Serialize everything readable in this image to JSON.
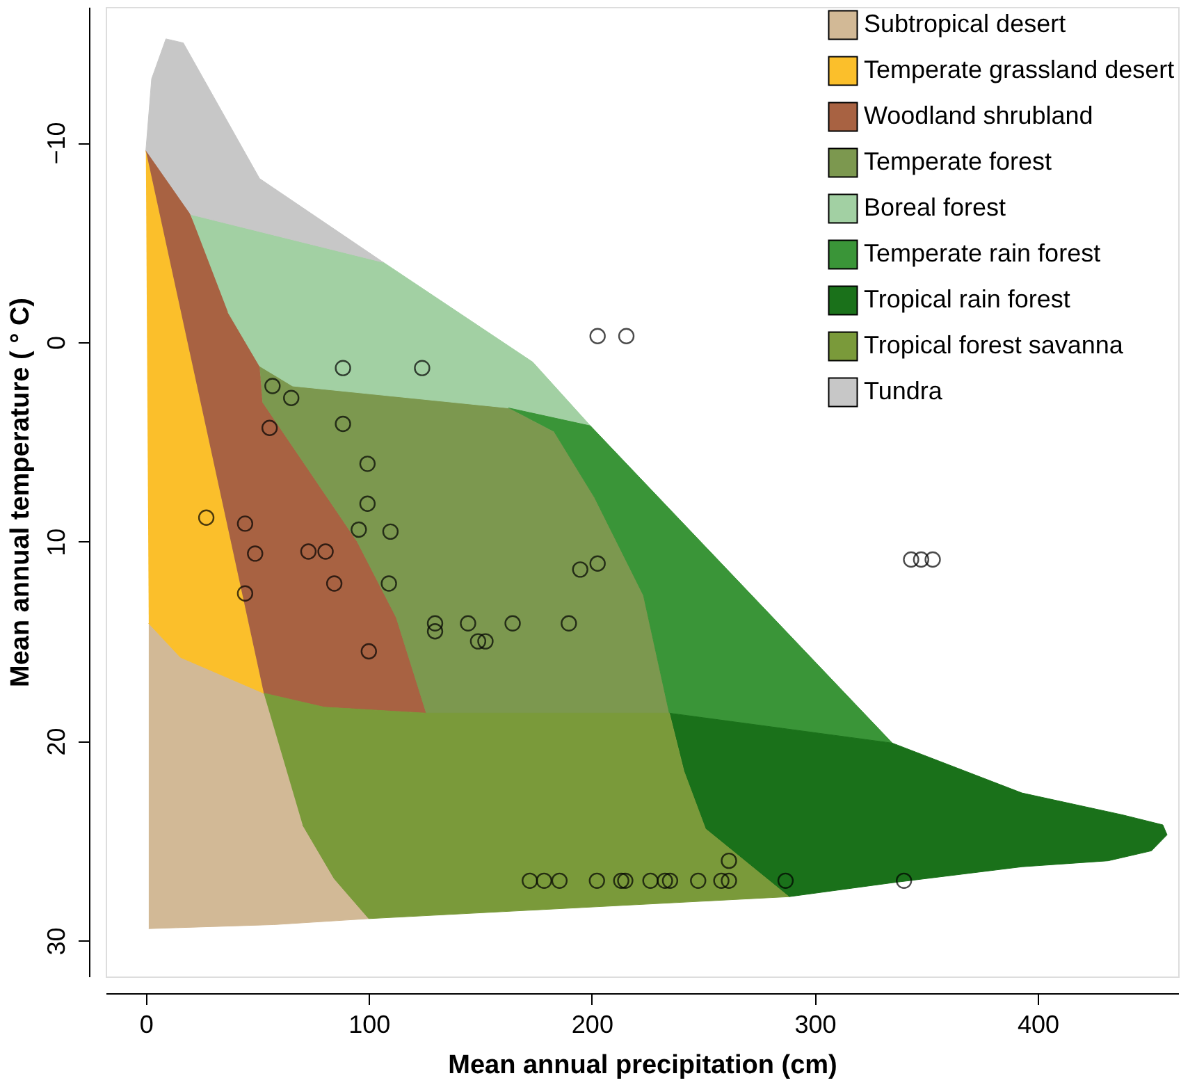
{
  "chart_data": {
    "type": "area",
    "xlabel": "Mean annual precipitation (cm)",
    "ylabel": "Mean annual temperature ( ° C)",
    "xlim": [
      -18,
      463
    ],
    "ylim": [
      31.8,
      -16.8
    ],
    "xticks": [
      0,
      100,
      200,
      300,
      400
    ],
    "yticks": [
      {
        "value": -10,
        "label": "−10"
      },
      0,
      10,
      20,
      30
    ],
    "grid": false,
    "legend": "top right",
    "series": [
      {
        "name": "Subtropical desert",
        "color": "#d2b996",
        "x": [
          1.3,
          15.5,
          52.9,
          70.3,
          84.5,
          100,
          57.4,
          1.3
        ],
        "values": [
          14.1,
          15.8,
          17.6,
          24.2,
          26.9,
          28.9,
          29.2,
          29.4
        ]
      },
      {
        "name": "Temperate grassland desert",
        "color": "#fbbf2b",
        "x": [
          0,
          52.9,
          15.5,
          1.3
        ],
        "values": [
          -9.6,
          17.6,
          15.8,
          14.1
        ]
      },
      {
        "name": "Woodland shrubland",
        "color": "#a86242",
        "x": [
          0,
          18.7,
          41.9,
          51,
          52.3,
          94.8,
          112.3,
          125.8,
          80,
          52.9
        ],
        "values": [
          -9.6,
          -6.7,
          -0.6,
          1.2,
          3.0,
          10.0,
          13.8,
          18.6,
          18.3,
          17.6
        ]
      },
      {
        "name": "Temperate forest",
        "color": "#7c984f",
        "x": [
          51,
          65.8,
          162.6,
          183.2,
          201.3,
          223.2,
          234.8,
          125.8,
          112.3,
          94.8,
          52.3
        ],
        "values": [
          1.2,
          2.2,
          3.3,
          4.5,
          7.8,
          12.7,
          18.6,
          18.6,
          13.8,
          10.0,
          3.0
        ]
      },
      {
        "name": "Boreal forest",
        "color": "#a2d0a3",
        "x": [
          20,
          106.5,
          173.5,
          199.4,
          162.6,
          65.8,
          51,
          36.8
        ],
        "values": [
          -6.4,
          -4.0,
          1.0,
          4.2,
          3.3,
          2.2,
          1.2,
          -1.5
        ]
      },
      {
        "name": "Temperate rain forest",
        "color": "#3a9538",
        "x": [
          162.6,
          199.4,
          334.8,
          234.8,
          223.2,
          201.3,
          183.2
        ],
        "values": [
          3.3,
          4.2,
          20.1,
          18.6,
          12.7,
          7.8,
          4.5
        ]
      },
      {
        "name": "Tropical rain forest",
        "color": "#1a711a",
        "x": [
          234.8,
          334.8,
          392.9,
          438.1,
          456.1,
          458,
          451,
          431.6,
          392.9,
          334.8,
          288.4,
          251,
          241.3
        ],
        "values": [
          18.6,
          20.1,
          22.6,
          23.7,
          24.2,
          24.7,
          25.5,
          26.0,
          26.3,
          27.1,
          27.8,
          24.4,
          21.5
        ]
      },
      {
        "name": "Tropical forest savanna",
        "color": "#7a9a3a",
        "x": [
          52.9,
          80,
          125.8,
          234.8,
          241.3,
          251,
          288.4,
          100,
          84.5,
          70.3
        ],
        "values": [
          17.6,
          18.3,
          18.6,
          18.6,
          21.5,
          24.4,
          27.8,
          28.9,
          26.9,
          24.2
        ]
      },
      {
        "name": "Tundra",
        "color": "#c7c7c7",
        "x": [
          0,
          2.6,
          9.0,
          16.8,
          51,
          106.5,
          20
        ],
        "values": [
          -9.6,
          -13.2,
          -15.2,
          -15.0,
          -8.2,
          -4.0,
          -6.4
        ]
      },
      {
        "color": "#000000",
        "type": "scatter",
        "marker": "circle",
        "x": [
          202.6,
          215.5,
          88.4,
          123.9,
          56.8,
          65.2,
          55.5,
          88.4,
          99.4,
          99.4,
          27.1,
          44.5,
          95.5,
          109.7,
          49.0,
          72.9,
          80.6,
          84.5,
          109,
          44.5,
          194.8,
          202.6,
          129.7,
          129.7,
          144.5,
          164.5,
          189.7,
          149,
          152.3,
          100,
          343.2,
          347.7,
          352.9,
          172.2,
          178.6,
          185.5,
          202.3,
          213.2,
          215,
          226.3,
          232.8,
          235.1,
          247.7,
          258.1,
          261.5,
          286.9,
          340,
          261.5
        ],
        "values": [
          -0.3,
          -0.3,
          1.3,
          1.3,
          2.2,
          2.8,
          4.3,
          4.1,
          6.1,
          8.1,
          8.8,
          9.1,
          9.4,
          9.5,
          10.6,
          10.5,
          10.5,
          12.1,
          12.1,
          12.6,
          11.4,
          11.1,
          14.1,
          14.5,
          14.1,
          14.1,
          14.1,
          15.0,
          15.0,
          15.5,
          10.9,
          10.9,
          10.9,
          27.0,
          27.0,
          27.0,
          27.0,
          27.0,
          27.0,
          27.0,
          27.0,
          27.0,
          27.0,
          27.0,
          27.0,
          27.0,
          27.0,
          26.0
        ]
      }
    ]
  }
}
